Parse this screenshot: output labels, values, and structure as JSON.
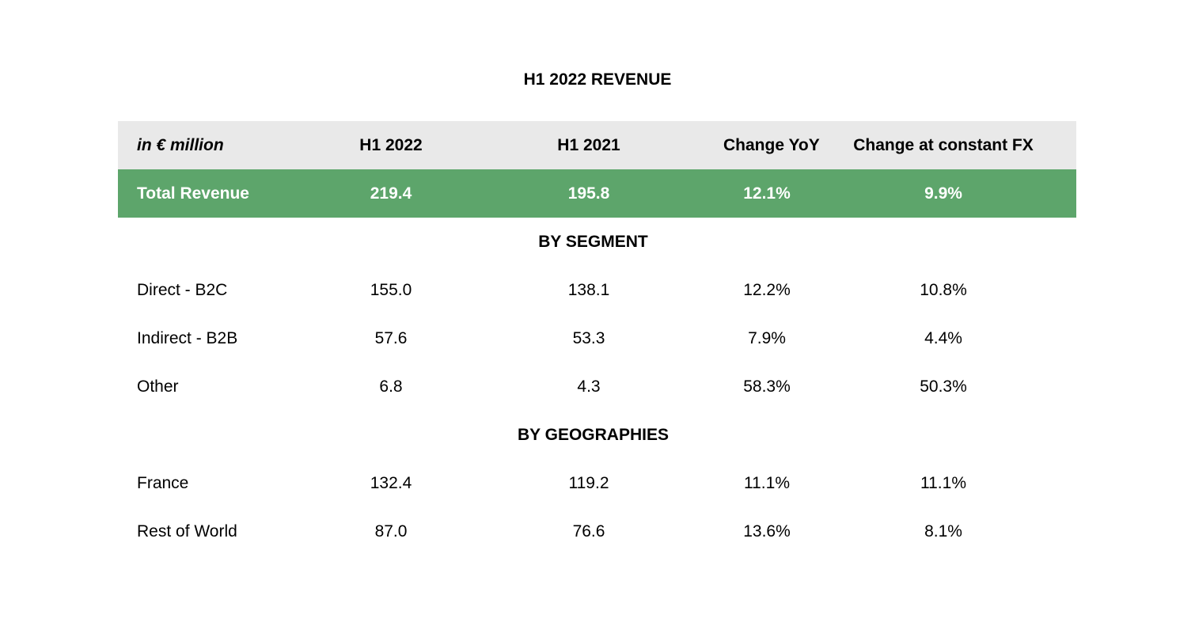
{
  "title": "H1 2022 REVENUE",
  "header": {
    "unit": "in € million",
    "col1": "H1 2022",
    "col2": "H1 2021",
    "col3": "Change YoY",
    "col4": "Change at constant FX"
  },
  "total": {
    "label": "Total Revenue",
    "h1_2022": "219.4",
    "h1_2021": "195.8",
    "change_yoy": "12.1%",
    "change_fx": "9.9%"
  },
  "segment": {
    "heading": "BY SEGMENT",
    "rows": [
      {
        "label": "Direct - B2C",
        "h1_2022": "155.0",
        "h1_2021": "138.1",
        "change_yoy": "12.2%",
        "change_fx": "10.8%"
      },
      {
        "label": "Indirect - B2B",
        "h1_2022": "57.6",
        "h1_2021": "53.3",
        "change_yoy": "7.9%",
        "change_fx": "4.4%"
      },
      {
        "label": "Other",
        "h1_2022": "6.8",
        "h1_2021": "4.3",
        "change_yoy": "58.3%",
        "change_fx": "50.3%"
      }
    ]
  },
  "geography": {
    "heading": "BY GEOGRAPHIES",
    "rows": [
      {
        "label": "France",
        "h1_2022": "132.4",
        "h1_2021": "119.2",
        "change_yoy": "11.1%",
        "change_fx": "11.1%"
      },
      {
        "label": "Rest of World",
        "h1_2022": "87.0",
        "h1_2021": "76.6",
        "change_yoy": "13.6%",
        "change_fx": "8.1%"
      }
    ]
  },
  "colors": {
    "header_bg": "#e9e9e9",
    "total_bg": "#5da56b",
    "total_text": "#ffffff"
  }
}
